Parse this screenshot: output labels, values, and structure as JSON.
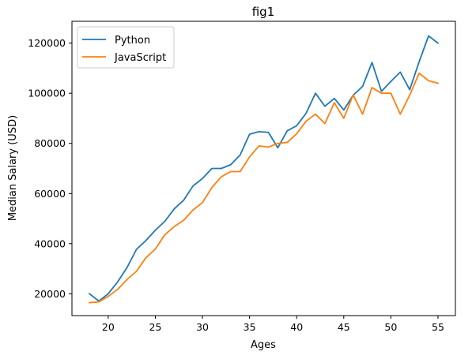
{
  "chart_data": {
    "type": "line",
    "title": "fig1",
    "xlabel": "Ages",
    "ylabel": "Median Salary (USD)",
    "xlim": [
      16.15,
      56.85
    ],
    "ylim": [
      11300,
      128700
    ],
    "xticks": [
      20,
      25,
      30,
      35,
      40,
      45,
      50,
      55
    ],
    "yticks": [
      20000,
      40000,
      60000,
      80000,
      100000,
      120000
    ],
    "grid": false,
    "legend_position": "top-left",
    "x": [
      18,
      19,
      20,
      21,
      22,
      23,
      24,
      25,
      26,
      27,
      28,
      29,
      30,
      31,
      32,
      33,
      34,
      35,
      36,
      37,
      38,
      39,
      40,
      41,
      42,
      43,
      44,
      45,
      46,
      47,
      48,
      49,
      50,
      51,
      52,
      53,
      54,
      55
    ],
    "series": [
      {
        "name": "Python",
        "color": "#1f77b4",
        "values": [
          20046,
          17100,
          20000,
          24744,
          30500,
          37732,
          41247,
          45372,
          48876,
          53850,
          57287,
          63016,
          65998,
          70003,
          70000,
          71496,
          75370,
          83640,
          84666,
          84392,
          78254,
          85000,
          87038,
          91991,
          100000,
          94796,
          97962,
          93302,
          99240,
          102736,
          112285,
          100771,
          104708,
          108423,
          101407,
          112542,
          122870,
          120000
        ]
      },
      {
        "name": "JavaScript",
        "color": "#ff7f0e",
        "values": [
          16446,
          16791,
          18942,
          21780,
          25704,
          29000,
          34372,
          37810,
          43515,
          46823,
          49293,
          53437,
          56373,
          62375,
          66674,
          68745,
          68746,
          74583,
          79000,
          78508,
          79996,
          80403,
          83820,
          88833,
          91660,
          87892,
          96243,
          90000,
          99313,
          91660,
          102264,
          100000,
          100000,
          91660,
          99240,
          108000,
          105000,
          104000
        ]
      }
    ]
  }
}
